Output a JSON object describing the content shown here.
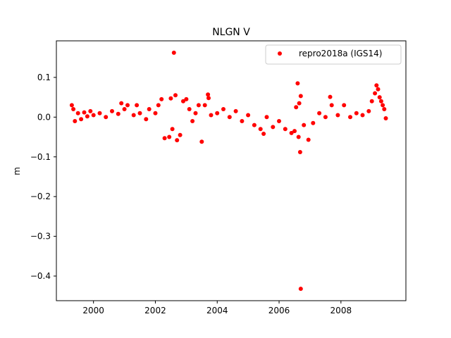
{
  "chart_data": {
    "type": "scatter",
    "title": "NLGN V",
    "xlabel": "",
    "ylabel": "m",
    "xlim": [
      1998.8,
      2010.1
    ],
    "ylim": [
      -0.462,
      0.192
    ],
    "x_ticks": [
      2000,
      2002,
      2004,
      2006,
      2008
    ],
    "x_tick_labels": [
      "2000",
      "2002",
      "2004",
      "2006",
      "2008"
    ],
    "y_ticks": [
      0.1,
      0.0,
      -0.1,
      -0.2,
      -0.3,
      -0.4
    ],
    "y_tick_labels": [
      "0.1",
      "0.0",
      "−0.1",
      "−0.2",
      "−0.3",
      "−0.4"
    ],
    "grid": false,
    "legend_position": "top-right",
    "series": [
      {
        "name": "repro2018a (IGS14)",
        "color": "#ff0000",
        "marker": "circle",
        "points": [
          [
            1999.3,
            0.03
          ],
          [
            1999.35,
            0.02
          ],
          [
            1999.4,
            -0.01
          ],
          [
            1999.5,
            0.01
          ],
          [
            1999.6,
            -0.005
          ],
          [
            1999.7,
            0.012
          ],
          [
            1999.8,
            0.002
          ],
          [
            1999.9,
            0.015
          ],
          [
            2000.0,
            0.005
          ],
          [
            2000.2,
            0.01
          ],
          [
            2000.4,
            0.0
          ],
          [
            2000.6,
            0.015
          ],
          [
            2000.8,
            0.008
          ],
          [
            2000.9,
            0.035
          ],
          [
            2001.0,
            0.02
          ],
          [
            2001.1,
            0.03
          ],
          [
            2001.3,
            0.005
          ],
          [
            2001.4,
            0.03
          ],
          [
            2001.5,
            0.01
          ],
          [
            2001.7,
            -0.005
          ],
          [
            2001.8,
            0.02
          ],
          [
            2002.0,
            0.01
          ],
          [
            2002.1,
            0.03
          ],
          [
            2002.2,
            0.045
          ],
          [
            2002.3,
            -0.053
          ],
          [
            2002.45,
            -0.05
          ],
          [
            2002.5,
            0.047
          ],
          [
            2002.55,
            -0.03
          ],
          [
            2002.6,
            0.162
          ],
          [
            2002.65,
            0.055
          ],
          [
            2002.7,
            -0.058
          ],
          [
            2002.8,
            -0.045
          ],
          [
            2002.9,
            0.04
          ],
          [
            2003.0,
            0.045
          ],
          [
            2003.1,
            0.02
          ],
          [
            2003.2,
            -0.01
          ],
          [
            2003.3,
            0.01
          ],
          [
            2003.4,
            0.03
          ],
          [
            2003.5,
            -0.062
          ],
          [
            2003.6,
            0.03
          ],
          [
            2003.7,
            0.057
          ],
          [
            2003.72,
            0.048
          ],
          [
            2003.8,
            0.005
          ],
          [
            2004.0,
            0.01
          ],
          [
            2004.2,
            0.02
          ],
          [
            2004.4,
            0.0
          ],
          [
            2004.6,
            0.015
          ],
          [
            2004.8,
            -0.01
          ],
          [
            2005.0,
            0.005
          ],
          [
            2005.2,
            -0.02
          ],
          [
            2005.4,
            -0.03
          ],
          [
            2005.5,
            -0.042
          ],
          [
            2005.6,
            0.0
          ],
          [
            2005.8,
            -0.025
          ],
          [
            2006.0,
            -0.01
          ],
          [
            2006.2,
            -0.03
          ],
          [
            2006.4,
            -0.04
          ],
          [
            2006.5,
            -0.035
          ],
          [
            2006.55,
            0.025
          ],
          [
            2006.6,
            0.085
          ],
          [
            2006.63,
            -0.05
          ],
          [
            2006.65,
            0.035
          ],
          [
            2006.68,
            -0.088
          ],
          [
            2006.7,
            0.053
          ],
          [
            2006.7,
            -0.432
          ],
          [
            2006.8,
            -0.02
          ],
          [
            2006.95,
            -0.057
          ],
          [
            2007.1,
            -0.015
          ],
          [
            2007.3,
            0.01
          ],
          [
            2007.5,
            0.0
          ],
          [
            2007.65,
            0.051
          ],
          [
            2007.7,
            0.03
          ],
          [
            2007.9,
            0.005
          ],
          [
            2008.1,
            0.03
          ],
          [
            2008.3,
            0.0
          ],
          [
            2008.5,
            0.01
          ],
          [
            2008.7,
            0.005
          ],
          [
            2008.9,
            0.015
          ],
          [
            2009.0,
            0.04
          ],
          [
            2009.1,
            0.06
          ],
          [
            2009.15,
            0.08
          ],
          [
            2009.2,
            0.07
          ],
          [
            2009.25,
            0.05
          ],
          [
            2009.3,
            0.04
          ],
          [
            2009.35,
            0.03
          ],
          [
            2009.4,
            0.02
          ],
          [
            2009.45,
            -0.003
          ]
        ]
      }
    ]
  }
}
